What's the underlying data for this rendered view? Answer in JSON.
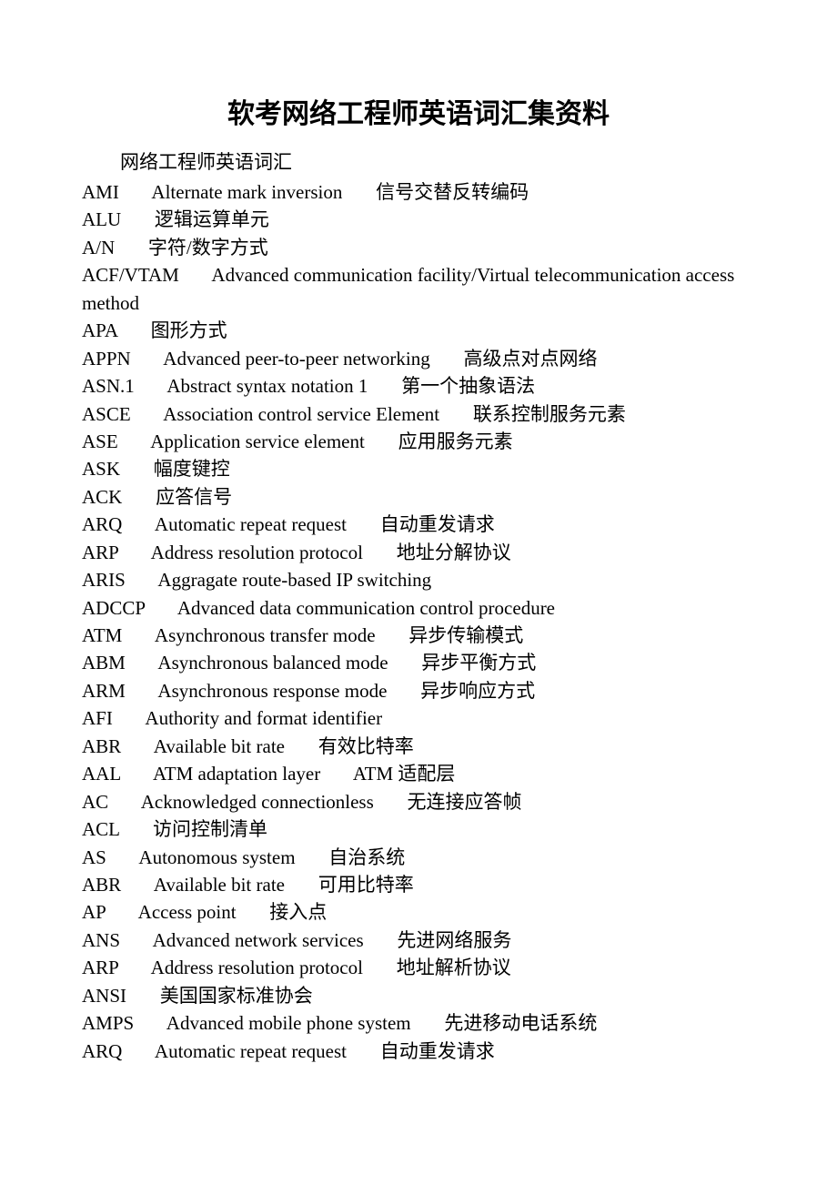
{
  "title": "软考网络工程师英语词汇集资料",
  "subtitle": "网络工程师英语词汇",
  "watermark": "",
  "text_color": "#000000",
  "background_color": "#ffffff",
  "title_fontsize": 30,
  "body_fontsize": 21,
  "entries": [
    {
      "abbr": "AMI",
      "full": "Alternate mark inversion",
      "cn": "信号交替反转编码"
    },
    {
      "abbr": "ALU",
      "full": "",
      "cn": "逻辑运算单元"
    },
    {
      "abbr": "A/N",
      "full": "",
      "cn": "字符/数字方式"
    },
    {
      "abbr": "ACF/VTAM",
      "full": "Advanced communication facility/Virtual telecommunication access method",
      "cn": ""
    },
    {
      "abbr": "APA",
      "full": "",
      "cn": "图形方式"
    },
    {
      "abbr": "APPN",
      "full": "Advanced peer-to-peer networking",
      "cn": "高级点对点网络"
    },
    {
      "abbr": "ASN.1",
      "full": "Abstract syntax notation 1",
      "cn": "第一个抽象语法"
    },
    {
      "abbr": "ASCE",
      "full": "Association control service Element",
      "cn": "联系控制服务元素"
    },
    {
      "abbr": "ASE",
      "full": "Application service element",
      "cn": "应用服务元素"
    },
    {
      "abbr": "ASK",
      "full": "",
      "cn": "幅度键控"
    },
    {
      "abbr": "ACK",
      "full": "",
      "cn": "应答信号"
    },
    {
      "abbr": "ARQ",
      "full": "Automatic repeat request",
      "cn": "自动重发请求"
    },
    {
      "abbr": "ARP",
      "full": "Address resolution protocol",
      "cn": "地址分解协议"
    },
    {
      "abbr": "ARIS",
      "full": "Aggragate route-based IP switching",
      "cn": ""
    },
    {
      "abbr": "ADCCP",
      "full": "Advanced data communication control procedure",
      "cn": ""
    },
    {
      "abbr": "ATM",
      "full": "Asynchronous transfer mode",
      "cn": "异步传输模式"
    },
    {
      "abbr": "ABM",
      "full": "Asynchronous balanced mode",
      "cn": "异步平衡方式"
    },
    {
      "abbr": "ARM",
      "full": "Asynchronous response mode",
      "cn": "异步响应方式"
    },
    {
      "abbr": "AFI",
      "full": "Authority and format identifier",
      "cn": ""
    },
    {
      "abbr": "ABR",
      "full": "Available bit rate",
      "cn": "有效比特率"
    },
    {
      "abbr": "AAL",
      "full": "ATM adaptation layer",
      "cn": "ATM 适配层"
    },
    {
      "abbr": "AC",
      "full": "Acknowledged connectionless",
      "cn": "无连接应答帧"
    },
    {
      "abbr": "ACL",
      "full": "",
      "cn": "访问控制清单"
    },
    {
      "abbr": "AS",
      "full": "Autonomous system",
      "cn": "自治系统"
    },
    {
      "abbr": "ABR",
      "full": "Available bit rate",
      "cn": "可用比特率"
    },
    {
      "abbr": "AP",
      "full": "Access point",
      "cn": "接入点"
    },
    {
      "abbr": "ANS",
      "full": "Advanced network services",
      "cn": "先进网络服务"
    },
    {
      "abbr": "ARP",
      "full": "Address resolution protocol",
      "cn": "地址解析协议"
    },
    {
      "abbr": "ANSI",
      "full": "",
      "cn": "美国国家标准协会"
    },
    {
      "abbr": "AMPS",
      "full": "Advanced mobile phone system",
      "cn": "先进移动电话系统"
    },
    {
      "abbr": "ARQ",
      "full": "Automatic repeat request",
      "cn": "自动重发请求"
    }
  ]
}
